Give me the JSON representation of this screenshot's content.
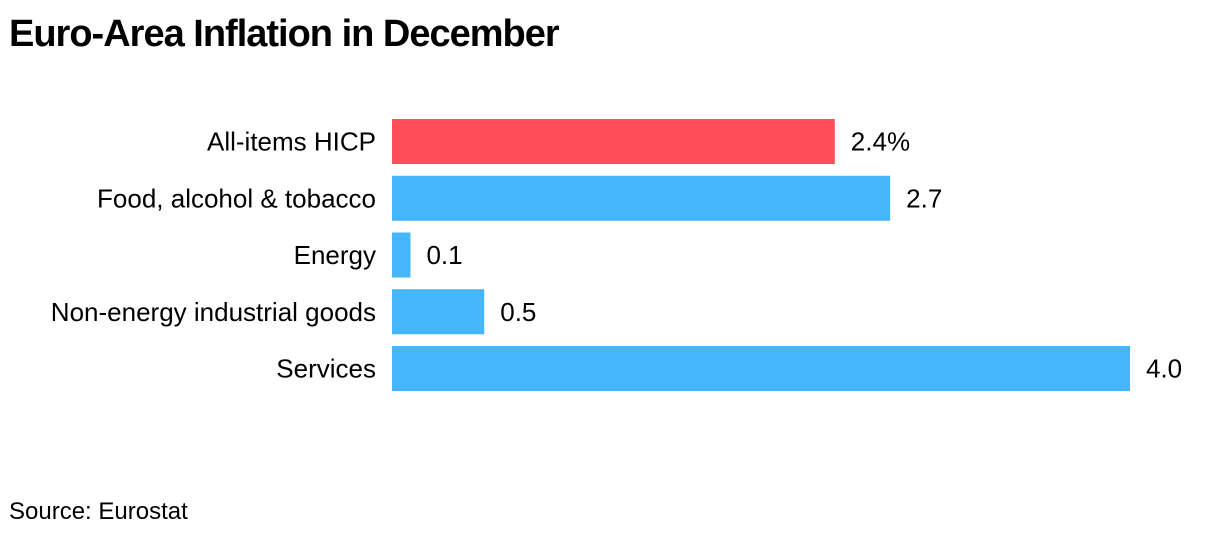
{
  "chart_data": {
    "type": "bar",
    "orientation": "horizontal",
    "title": "Euro-Area Inflation in December",
    "categories": [
      "All-items HICP",
      "Food, alcohol & tobacco",
      "Energy",
      "Non-energy industrial goods",
      "Services"
    ],
    "values": [
      2.4,
      2.7,
      0.1,
      0.5,
      4.0
    ],
    "data_labels": [
      "2.4%",
      "2.7",
      "0.1",
      "0.5",
      "4.0"
    ],
    "highlight_category": "All-items HICP",
    "colors": {
      "highlight": "#ff4f5b",
      "default": "#45b6f9"
    },
    "xlim": [
      0,
      4.0
    ],
    "grid": false,
    "legend": "none",
    "source": "Source: Eurostat"
  }
}
